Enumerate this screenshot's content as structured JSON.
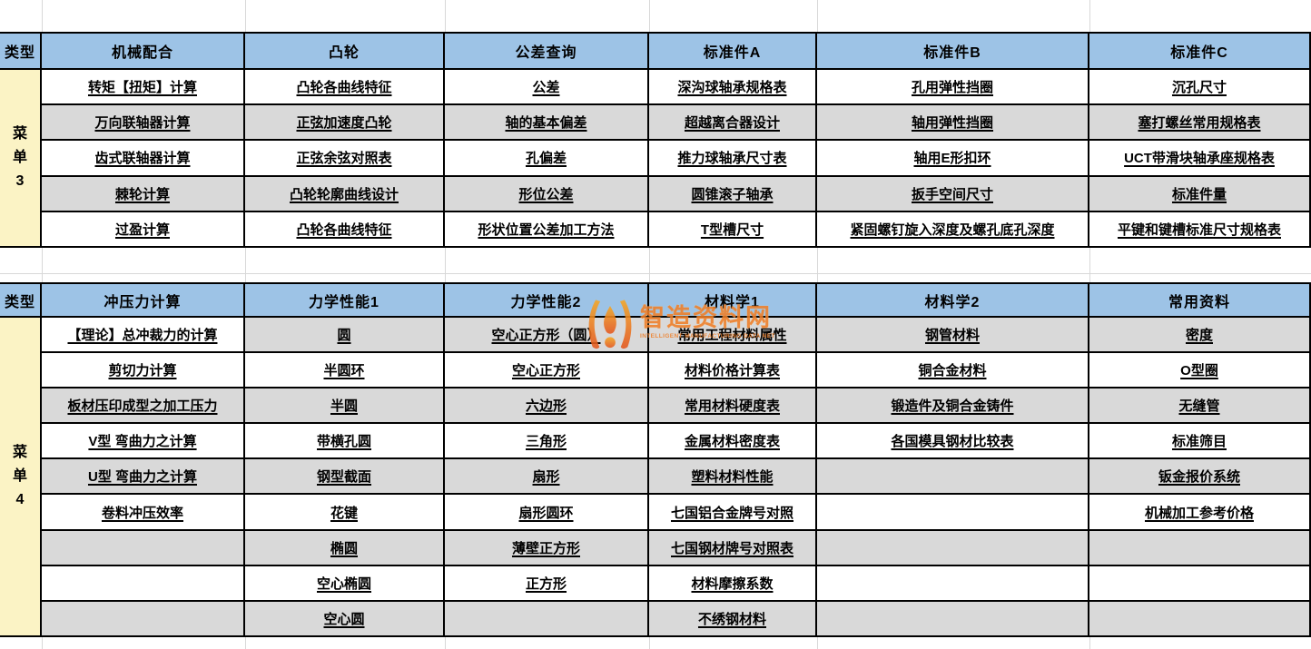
{
  "colors": {
    "header_blue": "#9dc3e6",
    "row_gray": "#d9d9d9",
    "row_white": "#ffffff",
    "menu_yellow": "#fbf3c5",
    "border_black": "#000000",
    "gridline_gray": "#d8d8d8",
    "watermark_orange": "#ef7f28",
    "comment_green": "#1e8a4c"
  },
  "watermark": {
    "text": "智造资料网",
    "subtext": "INTELLIGENT MANUFACTURING DATA NET"
  },
  "tables": [
    {
      "type_label": "类型",
      "menu_label": "菜单3",
      "columns": [
        {
          "header": "机械配合",
          "cells": [
            "转矩【扭矩】计算",
            "万向联轴器计算",
            "齿式联轴器计算",
            "棘轮计算",
            "过盈计算"
          ]
        },
        {
          "header": "凸轮",
          "cells": [
            "凸轮各曲线特征",
            "正弦加速度凸轮",
            "正弦余弦对照表",
            "凸轮轮廓曲线设计",
            "凸轮各曲线特征"
          ]
        },
        {
          "header": "公差查询",
          "cells": [
            "公差",
            "轴的基本偏差",
            "孔偏差",
            "形位公差",
            "形状位置公差加工方法"
          ]
        },
        {
          "header": "标准件A",
          "cells": [
            "深沟球轴承规格表",
            "超越离合器设计",
            "推力球轴承尺寸表",
            "圆锥滚子轴承",
            "T型槽尺寸"
          ]
        },
        {
          "header": "标准件B",
          "cells": [
            "孔用弹性挡圈",
            "轴用弹性挡圈",
            "轴用E形扣环",
            "扳手空间尺寸",
            "紧固螺钉旋入深度及螺孔底孔深度"
          ]
        },
        {
          "header": "标准件C",
          "cells": [
            "沉孔尺寸",
            "塞打螺丝常用规格表",
            "UCT带滑块轴承座规格表",
            "标准件量",
            "平键和键槽标准尺寸规格表"
          ]
        }
      ]
    },
    {
      "type_label": "类型",
      "menu_label": "菜单4",
      "columns": [
        {
          "header": "冲压力计算",
          "cells": [
            "【理论】总冲裁力的计算",
            "剪切力计算",
            "板材压印成型之加工压力",
            "V型 弯曲力之计算",
            "U型 弯曲力之计算",
            "卷料冲压效率",
            "",
            "",
            ""
          ]
        },
        {
          "header": "力学性能1",
          "cells": [
            "圆",
            "半圆环",
            "半圆",
            "带横孔圆",
            "钢型截面",
            "花键",
            "椭圆",
            "空心椭圆",
            "空心圆"
          ]
        },
        {
          "header": "力学性能2",
          "cells": [
            "空心正方形（圆）",
            "空心正方形",
            "六边形",
            "三角形",
            "扇形",
            "扇形圆环",
            "薄壁正方形",
            "正方形",
            ""
          ]
        },
        {
          "header": "材料学1",
          "cells": [
            "常用工程材料属性",
            "材料价格计算表",
            "常用材料硬度表",
            "金属材料密度表",
            "塑料材料性能",
            "七国铝合金牌号对照",
            "七国钢材牌号对照表",
            "材料摩擦系数",
            "不绣钢材料"
          ]
        },
        {
          "header": "材料学2",
          "cells": [
            "钢管材料",
            "铜合金材料",
            "锻造件及铜合金铸件",
            "各国模具钢材比较表",
            "",
            "",
            "",
            "",
            ""
          ]
        },
        {
          "header": "常用资料",
          "cells": [
            "密度",
            "O型圈",
            "无缝管",
            "标准筛目",
            "钣金报价系统",
            "机械加工参考价格",
            "",
            "",
            ""
          ]
        }
      ]
    }
  ]
}
